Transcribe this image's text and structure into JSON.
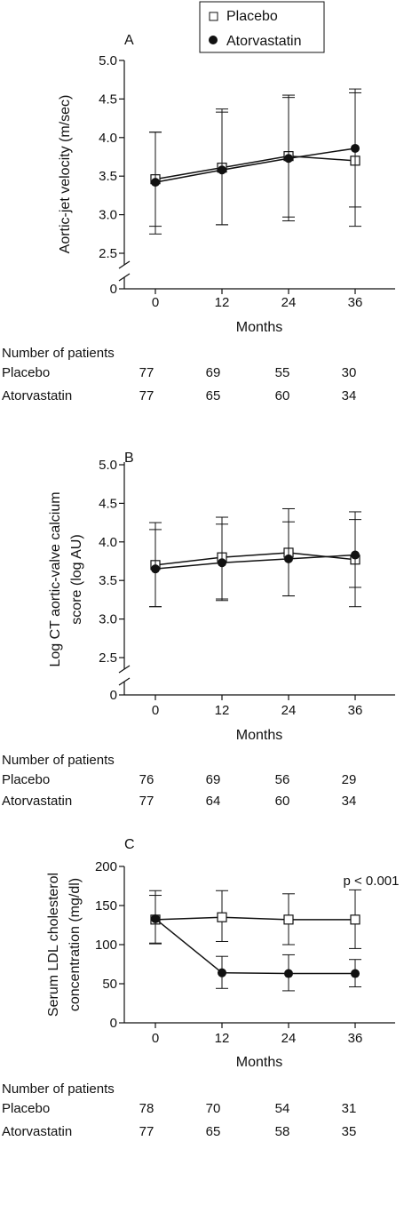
{
  "legend": {
    "items": [
      {
        "name": "Placebo",
        "marker": "open-square"
      },
      {
        "name": "Atorvastatin",
        "marker": "filled-circle"
      }
    ]
  },
  "chart_data": [
    {
      "panel": "A",
      "type": "line",
      "ylabel": "Aortic-jet velocity (m/sec)",
      "xlabel": "Months",
      "x": [
        0,
        12,
        24,
        36
      ],
      "x_ticks": [
        "0",
        "12",
        "24",
        "36"
      ],
      "y_ticks": [
        "2.5",
        "3.0",
        "3.5",
        "4.0",
        "4.5",
        "5.0"
      ],
      "y_zero_tick": "0",
      "axis_break": true,
      "ylim": [
        2.25,
        5.0
      ],
      "series": [
        {
          "name": "Placebo",
          "marker": "open-square",
          "values": [
            3.46,
            3.61,
            3.76,
            3.7
          ],
          "err_low": [
            2.85,
            2.87,
            2.97,
            2.85
          ],
          "err_high": [
            4.07,
            4.37,
            4.55,
            4.63
          ]
        },
        {
          "name": "Atorvastatin",
          "marker": "filled-circle",
          "values": [
            3.42,
            3.58,
            3.73,
            3.86
          ],
          "err_low": [
            2.75,
            2.87,
            2.92,
            3.1
          ],
          "err_high": [
            4.07,
            4.33,
            4.52,
            4.58
          ]
        }
      ],
      "patients": {
        "heading": "Number of patients",
        "rows": [
          {
            "label": "Placebo",
            "values": [
              "77",
              "69",
              "55",
              "30"
            ]
          },
          {
            "label": "Atorvastatin",
            "values": [
              "77",
              "65",
              "60",
              "34"
            ]
          }
        ]
      }
    },
    {
      "panel": "B",
      "type": "line",
      "ylabel": "Log CT aortic-valve calcium score (log AU)",
      "ylabel_lines": [
        "Log CT aortic-valve calcium",
        "score (log AU)"
      ],
      "xlabel": "Months",
      "x": [
        0,
        12,
        24,
        36
      ],
      "x_ticks": [
        "0",
        "12",
        "24",
        "36"
      ],
      "y_ticks": [
        "2.5",
        "3.0",
        "3.5",
        "4.0",
        "4.5",
        "5.0"
      ],
      "y_zero_tick": "0",
      "axis_break": true,
      "ylim": [
        2.25,
        5.0
      ],
      "series": [
        {
          "name": "Placebo",
          "marker": "open-square",
          "values": [
            3.7,
            3.8,
            3.86,
            3.77
          ],
          "err_low": [
            3.16,
            3.26,
            3.3,
            3.16
          ],
          "err_high": [
            4.25,
            4.32,
            4.43,
            4.39
          ]
        },
        {
          "name": "Atorvastatin",
          "marker": "filled-circle",
          "values": [
            3.65,
            3.73,
            3.78,
            3.83
          ],
          "err_low": [
            3.16,
            3.24,
            3.3,
            3.41
          ],
          "err_high": [
            4.16,
            4.23,
            4.26,
            4.29
          ]
        }
      ],
      "patients": {
        "heading": "Number of patients",
        "rows": [
          {
            "label": "Placebo",
            "values": [
              "76",
              "69",
              "56",
              "29"
            ]
          },
          {
            "label": "Atorvastatin",
            "values": [
              "77",
              "64",
              "60",
              "34"
            ]
          }
        ]
      }
    },
    {
      "panel": "C",
      "type": "line",
      "ylabel": "Serum LDL cholesterol concentration (mg/dl)",
      "ylabel_lines": [
        "Serum LDL cholesterol",
        "concentration (mg/dl)"
      ],
      "xlabel": "Months",
      "annotation": "p < 0.001",
      "x": [
        0,
        12,
        24,
        36
      ],
      "x_ticks": [
        "0",
        "12",
        "24",
        "36"
      ],
      "y_ticks": [
        "0",
        "50",
        "100",
        "150",
        "200"
      ],
      "axis_break": false,
      "ylim": [
        0,
        200
      ],
      "series": [
        {
          "name": "Placebo",
          "marker": "open-square",
          "values": [
            132,
            135,
            132,
            132
          ],
          "err_low": [
            101,
            104,
            100,
            95
          ],
          "err_high": [
            163,
            169,
            165,
            170
          ]
        },
        {
          "name": "Atorvastatin",
          "marker": "filled-circle",
          "values": [
            133,
            64,
            63,
            63
          ],
          "err_low": [
            102,
            44,
            41,
            46
          ],
          "err_high": [
            169,
            85,
            87,
            81
          ]
        }
      ],
      "patients": {
        "heading": "Number of patients",
        "rows": [
          {
            "label": "Placebo",
            "values": [
              "78",
              "70",
              "54",
              "31"
            ]
          },
          {
            "label": "Atorvastatin",
            "values": [
              "77",
              "65",
              "58",
              "35"
            ]
          }
        ]
      }
    }
  ]
}
